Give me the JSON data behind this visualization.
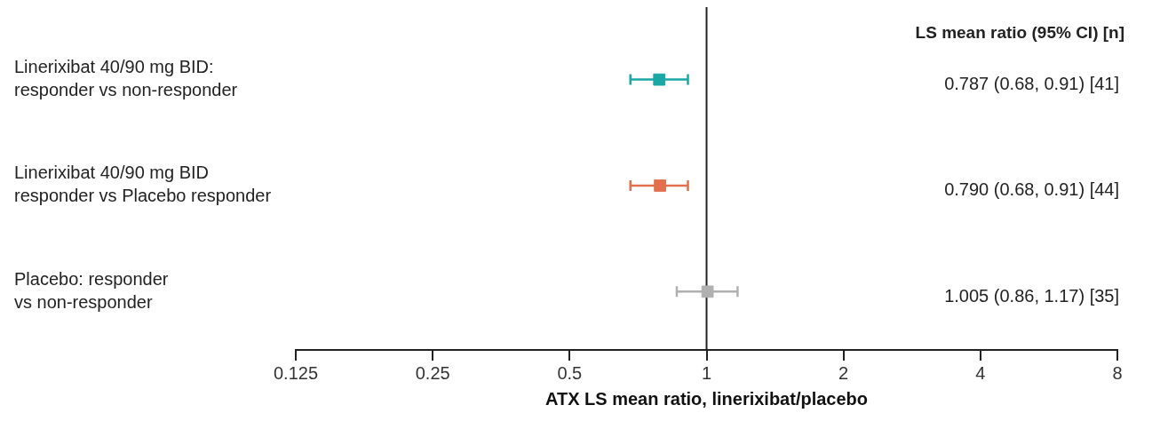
{
  "chart_data": {
    "type": "scatter",
    "orientation": "horizontal",
    "categories": [
      "Linerixibat 40/90 mg BID:\nresponder vs non-responder",
      "Linerixibat 40/90 mg BID\nresponder vs Placebo responder",
      "Placebo: responder\nvs non-responder"
    ],
    "values": [
      0.787,
      0.79,
      1.005
    ],
    "errors": [
      [
        0.68,
        0.91
      ],
      [
        0.68,
        0.91
      ],
      [
        0.86,
        1.17
      ]
    ],
    "colors": [
      "#1aa8a6",
      "#e2704e",
      "#b0b0b0"
    ],
    "xlabel": "ATX LS mean ratio, linerixibat/placebo",
    "xlim": [
      0.125,
      8
    ],
    "xticks": [
      0.125,
      0.25,
      0.5,
      1,
      2,
      4,
      8
    ],
    "log": "x",
    "ref_lines": [
      {
        "axis": "x",
        "value": 1,
        "color": "#222222"
      }
    ],
    "annotations": [
      "LS mean ratio (95% CI) [n]",
      "0.787 (0.68, 0.91) [41]",
      "0.790 (0.68, 0.91) [44]",
      "1.005 (0.86, 1.17) [35]"
    ],
    "marker": "square",
    "grid": false,
    "legend": false
  }
}
